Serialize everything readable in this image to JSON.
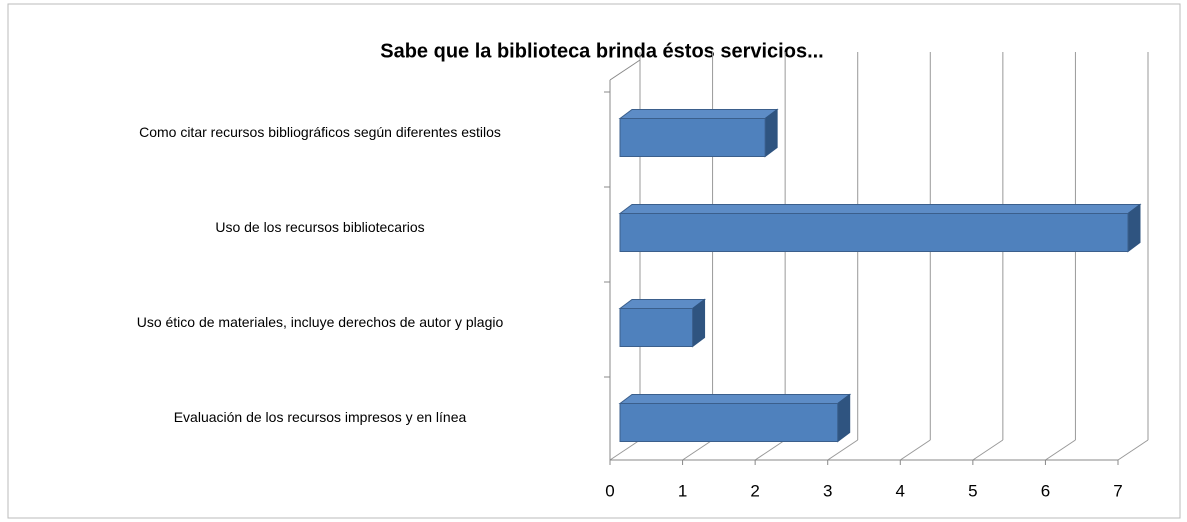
{
  "chart_data": {
    "type": "bar3d",
    "orientation": "horizontal",
    "title": "Sabe que la biblioteca brinda éstos servicios...",
    "categories": [
      "Como citar recursos bibliográficos según diferentes estilos",
      "Uso de los recursos bibliotecarios",
      "Uso ético de materiales, incluye derechos de autor y  plagio",
      "Evaluación de los recursos impresos y en línea"
    ],
    "values": [
      2,
      7,
      1,
      3
    ],
    "color": "#4f81bd",
    "xlim": [
      0,
      7
    ],
    "xticks": [
      0,
      1,
      2,
      3,
      4,
      5,
      6,
      7
    ],
    "grid": true
  }
}
